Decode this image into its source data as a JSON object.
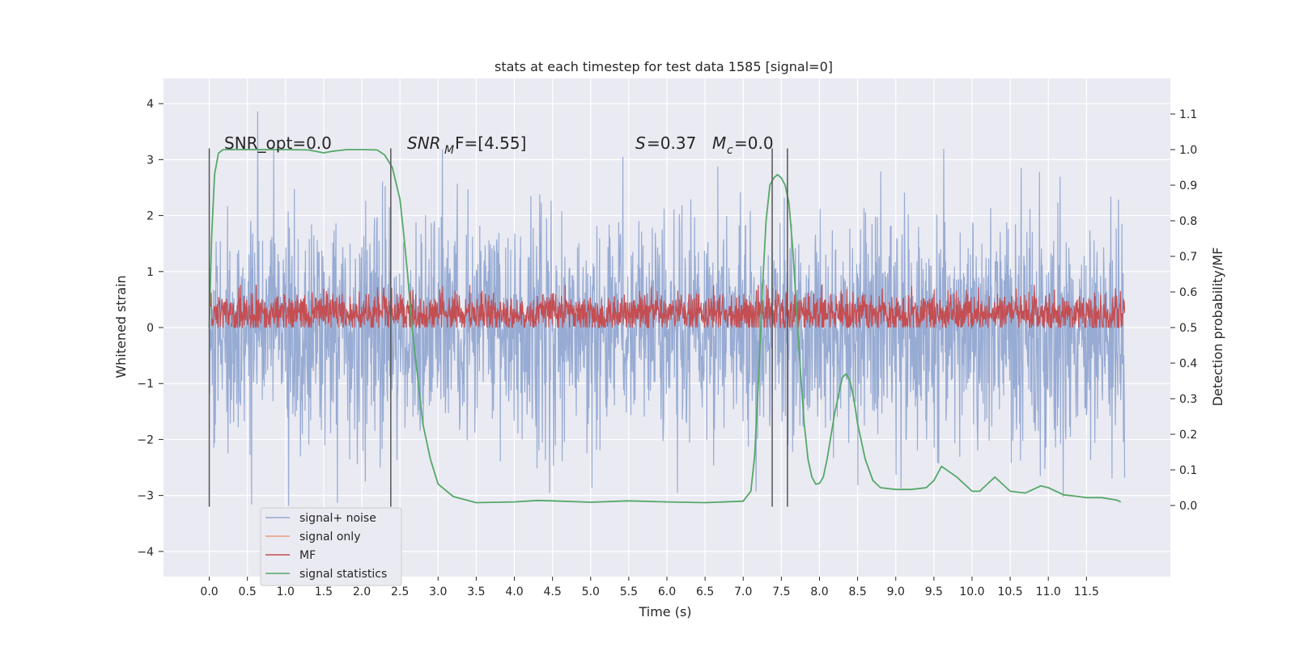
{
  "chart_data": {
    "type": "line",
    "title": "stats at each timestep for test data 1585 [signal=0]",
    "xlabel": "Time (s)",
    "ylabel": "Whitened strain",
    "y2label": "Detection probability/MF",
    "xlim": [
      -0.6,
      12.6
    ],
    "ylim": [
      -4.45,
      4.45
    ],
    "y2lim": [
      -0.2,
      1.2
    ],
    "x_ticks": [
      0.0,
      0.5,
      1.0,
      1.5,
      2.0,
      2.5,
      3.0,
      3.5,
      4.0,
      4.5,
      5.0,
      5.5,
      6.0,
      6.5,
      7.0,
      7.5,
      8.0,
      8.5,
      9.0,
      9.5,
      10.0,
      10.5,
      11.0,
      11.5
    ],
    "x_tick_labels": [
      "0.0",
      "0.5",
      "1.0",
      "1.5",
      "2.0",
      "2.5",
      "3.0",
      "3.5",
      "4.0",
      "4.5",
      "5.0",
      "5.5",
      "6.0",
      "6.5",
      "7.0",
      "7.5",
      "8.0",
      "8.5",
      "9.0",
      "9.5",
      "10.0",
      "10.5",
      "11.0",
      "11.5"
    ],
    "y_ticks": [
      -4,
      -3,
      -2,
      -1,
      0,
      1,
      2,
      3,
      4
    ],
    "y_tick_labels": [
      "−4",
      "−3",
      "−2",
      "−1",
      "0",
      "1",
      "2",
      "3",
      "4"
    ],
    "y2_ticks": [
      0.0,
      0.1,
      0.2,
      0.3,
      0.4,
      0.5,
      0.6,
      0.7,
      0.8,
      0.9,
      1.0,
      1.1
    ],
    "y2_tick_labels": [
      "0.0",
      "0.1",
      "0.2",
      "0.3",
      "0.4",
      "0.5",
      "0.6",
      "0.7",
      "0.8",
      "0.9",
      "1.0",
      "1.1"
    ],
    "grid": true,
    "legend_position": "lower-left",
    "annotations": {
      "snr_opt": "SNR_opt=0.0",
      "snr_mf_main": "SNR",
      "snr_mf_sub": "M",
      "snr_mf_rest": "F=[4.55]",
      "s_main": "S",
      "s_rest": "=0.37",
      "mc_main": "M",
      "mc_sub": "c",
      "mc_rest": "=0.0"
    },
    "vertical_markers": [
      0.0,
      2.38,
      7.38,
      7.58
    ],
    "series": [
      {
        "name": "signal+ noise",
        "color": "#92a8d1",
        "axis": "left",
        "t_range": [
          0.0,
          12.0
        ],
        "std": 1.0,
        "seed": 1585
      },
      {
        "name": "signal only",
        "color": "#e8a07c",
        "axis": "left",
        "values": []
      },
      {
        "name": "MF",
        "color": "#c44e52",
        "axis": "right",
        "t_range": [
          0.0,
          12.0
        ],
        "base": 0.54,
        "std": 0.03
      },
      {
        "name": "signal statistics",
        "color": "#55a868",
        "axis": "right",
        "x": [
          0.0,
          0.03,
          0.07,
          0.12,
          0.18,
          0.3,
          0.5,
          1.0,
          1.3,
          1.5,
          1.6,
          1.8,
          2.0,
          2.2,
          2.3,
          2.4,
          2.5,
          2.55,
          2.6,
          2.65,
          2.7,
          2.75,
          2.8,
          2.9,
          3.0,
          3.2,
          3.5,
          4.0,
          4.3,
          4.5,
          5.0,
          5.5,
          6.0,
          6.5,
          7.0,
          7.1,
          7.15,
          7.2,
          7.25,
          7.3,
          7.35,
          7.4,
          7.45,
          7.5,
          7.55,
          7.6,
          7.65,
          7.7,
          7.75,
          7.8,
          7.85,
          7.9,
          7.95,
          8.0,
          8.05,
          8.1,
          8.2,
          8.3,
          8.35,
          8.4,
          8.45,
          8.5,
          8.6,
          8.7,
          8.8,
          9.0,
          9.2,
          9.4,
          9.5,
          9.6,
          9.8,
          10.0,
          10.1,
          10.2,
          10.3,
          10.4,
          10.5,
          10.7,
          10.9,
          11.0,
          11.2,
          11.4,
          11.5,
          11.7,
          11.9,
          11.95
        ],
        "values": [
          0.5,
          0.75,
          0.93,
          0.99,
          1.0,
          1.0,
          1.0,
          1.0,
          0.999,
          0.991,
          0.995,
          1.0,
          1.0,
          0.999,
          0.985,
          0.95,
          0.86,
          0.76,
          0.65,
          0.52,
          0.42,
          0.33,
          0.23,
          0.13,
          0.06,
          0.025,
          0.008,
          0.01,
          0.014,
          0.013,
          0.009,
          0.013,
          0.01,
          0.008,
          0.012,
          0.04,
          0.14,
          0.35,
          0.6,
          0.8,
          0.9,
          0.92,
          0.93,
          0.92,
          0.9,
          0.85,
          0.72,
          0.55,
          0.38,
          0.23,
          0.13,
          0.08,
          0.06,
          0.062,
          0.08,
          0.13,
          0.26,
          0.36,
          0.37,
          0.35,
          0.3,
          0.23,
          0.13,
          0.07,
          0.05,
          0.045,
          0.045,
          0.05,
          0.07,
          0.11,
          0.08,
          0.04,
          0.04,
          0.06,
          0.08,
          0.06,
          0.04,
          0.035,
          0.055,
          0.05,
          0.03,
          0.025,
          0.022,
          0.022,
          0.015,
          0.01
        ]
      }
    ]
  }
}
